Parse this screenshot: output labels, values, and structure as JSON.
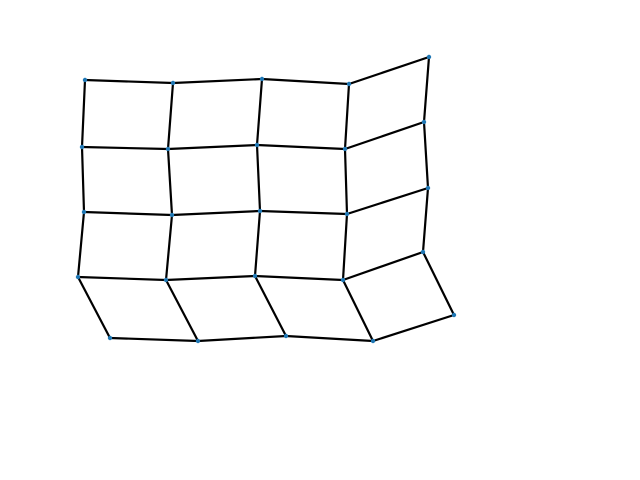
{
  "diagram": {
    "type": "deformed-grid",
    "rows": 5,
    "columns": 5,
    "edge_color": "#000000",
    "node_color": "#1f77b4"
  }
}
